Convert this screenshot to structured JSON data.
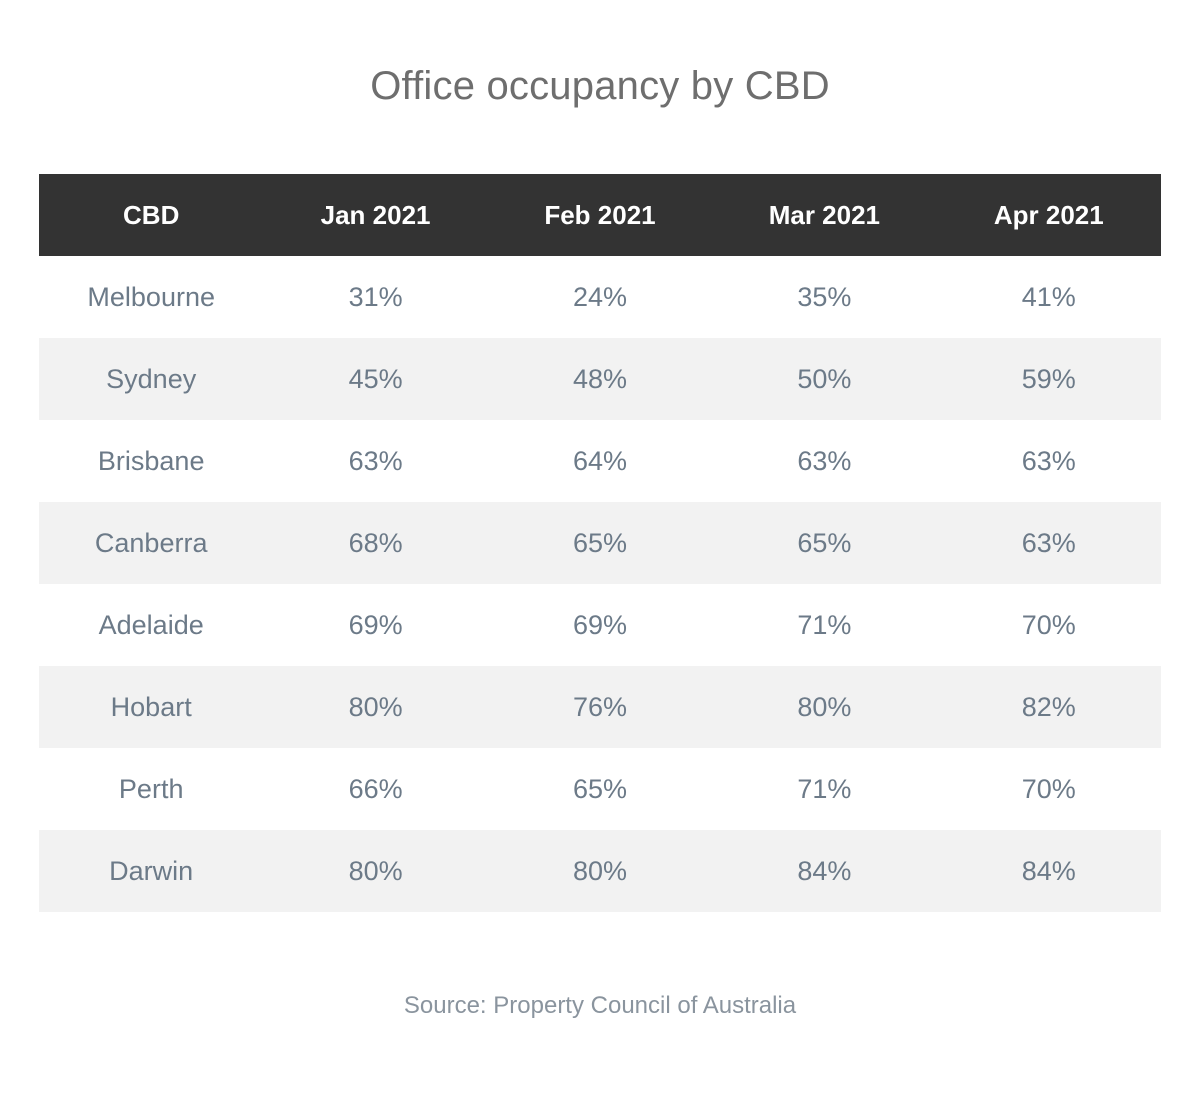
{
  "chart_data": {
    "type": "table",
    "title": "Office occupancy by CBD",
    "columns": [
      "CBD",
      "Jan 2021",
      "Feb 2021",
      "Mar 2021",
      "Apr 2021"
    ],
    "rows": [
      {
        "cbd": "Melbourne",
        "values": [
          "31%",
          "24%",
          "35%",
          "41%"
        ]
      },
      {
        "cbd": "Sydney",
        "values": [
          "45%",
          "48%",
          "50%",
          "59%"
        ]
      },
      {
        "cbd": "Brisbane",
        "values": [
          "63%",
          "64%",
          "63%",
          "63%"
        ]
      },
      {
        "cbd": "Canberra",
        "values": [
          "68%",
          "65%",
          "65%",
          "63%"
        ]
      },
      {
        "cbd": "Adelaide",
        "values": [
          "69%",
          "69%",
          "71%",
          "70%"
        ]
      },
      {
        "cbd": "Hobart",
        "values": [
          "80%",
          "76%",
          "80%",
          "82%"
        ]
      },
      {
        "cbd": "Perth",
        "values": [
          "66%",
          "65%",
          "71%",
          "70%"
        ]
      },
      {
        "cbd": "Darwin",
        "values": [
          "80%",
          "80%",
          "84%",
          "84%"
        ]
      }
    ],
    "source": "Source: Property Council of Australia"
  },
  "colors": {
    "header_bg": "#333333",
    "header_text": "#ffffff",
    "cell_text": "#6c7a88",
    "stripe_bg": "#f2f2f2",
    "title_text": "#6e6e6e",
    "source_text": "#8a949e"
  }
}
